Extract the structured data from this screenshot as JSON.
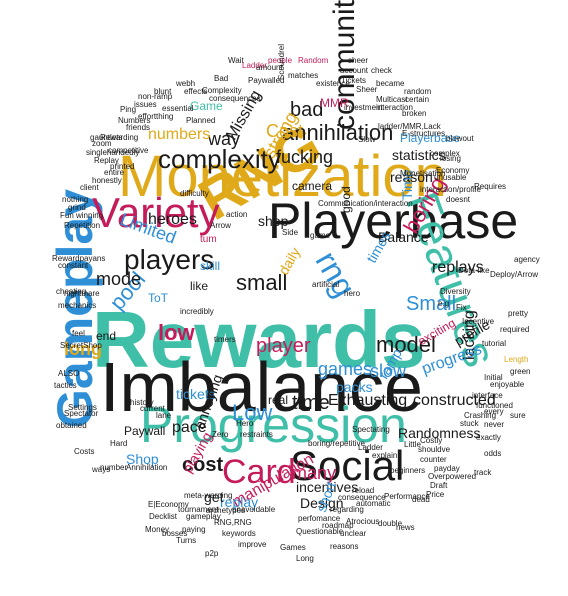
{
  "palette": {
    "teal": "#3fbfa8",
    "gold": "#e0a91a",
    "black": "#1a1a1a",
    "crimson": "#c41c5a",
    "blue": "#2e8fd6",
    "grey": "#777777"
  },
  "words": [
    {
      "text": "Rewards",
      "c": "teal"
    },
    {
      "text": "Imbalance",
      "c": "black"
    },
    {
      "text": "Monetization",
      "c": "gold"
    },
    {
      "text": "Playerbase",
      "c": "black"
    },
    {
      "text": "RNG",
      "c": "gold"
    },
    {
      "text": "Progression",
      "c": "teal"
    },
    {
      "text": "Gameplay",
      "c": "blue"
    },
    {
      "text": "Features",
      "c": "teal"
    },
    {
      "text": "Social",
      "c": "black"
    },
    {
      "text": "Variety",
      "c": "crimson"
    },
    {
      "text": "Card",
      "c": "crimson"
    },
    {
      "text": "players",
      "c": "black"
    },
    {
      "text": "community",
      "c": "black"
    },
    {
      "text": "rng",
      "c": "blue"
    },
    {
      "text": "complexity",
      "c": "black"
    },
    {
      "text": "annihilation",
      "c": "black"
    },
    {
      "text": "Low",
      "c": "blue"
    },
    {
      "text": "low",
      "c": "crimson"
    },
    {
      "text": "Limited",
      "c": "blue"
    },
    {
      "text": "Small",
      "c": "blue"
    },
    {
      "text": "model",
      "c": "black"
    },
    {
      "text": "time",
      "c": "black"
    },
    {
      "text": "bad",
      "c": "black"
    },
    {
      "text": "fucking",
      "c": "black"
    },
    {
      "text": "small",
      "c": "black"
    },
    {
      "text": "way",
      "c": "black"
    },
    {
      "text": "Cost",
      "c": "gold"
    },
    {
      "text": "strong",
      "c": "gold"
    },
    {
      "text": "Missing",
      "c": "black"
    },
    {
      "text": "numbers",
      "c": "gold"
    },
    {
      "text": "heroes",
      "c": "black"
    },
    {
      "text": "pool",
      "c": "blue"
    },
    {
      "text": "mode",
      "c": "black"
    },
    {
      "text": "boring",
      "c": "crimson"
    },
    {
      "text": "replays",
      "c": "black"
    },
    {
      "text": "statistics",
      "c": "black"
    },
    {
      "text": "reason",
      "c": "black"
    },
    {
      "text": "Playerbase",
      "c": "blue"
    },
    {
      "text": "Balance",
      "c": "black"
    },
    {
      "text": "player",
      "c": "crimson"
    },
    {
      "text": "games",
      "c": "blue"
    },
    {
      "text": "slow",
      "c": "blue"
    },
    {
      "text": "many",
      "c": "crimson"
    },
    {
      "text": "cost",
      "c": "black"
    },
    {
      "text": "Exhausting",
      "c": "black"
    },
    {
      "text": "constructed",
      "c": "black"
    },
    {
      "text": "tickets",
      "c": "blue"
    },
    {
      "text": "pace",
      "c": "black"
    },
    {
      "text": "Shop",
      "c": "blue"
    },
    {
      "text": "playing",
      "c": "crimson"
    },
    {
      "text": "manipulation",
      "c": "crimson"
    },
    {
      "text": "incentives",
      "c": "black"
    },
    {
      "text": "Design",
      "c": "black"
    },
    {
      "text": "Randomness",
      "c": "black"
    },
    {
      "text": "replay",
      "c": "blue"
    },
    {
      "text": "lacking",
      "c": "black"
    },
    {
      "text": "progress",
      "c": "blue"
    },
    {
      "text": "profile",
      "c": "black"
    },
    {
      "text": "long",
      "c": "gold"
    },
    {
      "text": "end",
      "c": "black"
    },
    {
      "text": "Game",
      "c": "teal"
    },
    {
      "text": "MMR",
      "c": "crimson"
    },
    {
      "text": "camera",
      "c": "black"
    },
    {
      "text": "shop",
      "c": "black"
    },
    {
      "text": "tum",
      "c": "crimson"
    },
    {
      "text": "skill",
      "c": "blue"
    },
    {
      "text": "like",
      "c": "black"
    },
    {
      "text": "ToT",
      "c": "blue"
    },
    {
      "text": "real",
      "c": "black"
    },
    {
      "text": "get",
      "c": "black"
    },
    {
      "text": "annoying",
      "c": "black"
    },
    {
      "text": "Paywall",
      "c": "black"
    },
    {
      "text": "ramp",
      "c": "blue"
    },
    {
      "text": "packs",
      "c": "blue"
    },
    {
      "text": "exciting",
      "c": "crimson"
    },
    {
      "text": "daily",
      "c": "gold"
    },
    {
      "text": "good",
      "c": "black"
    },
    {
      "text": "times",
      "c": "blue"
    },
    {
      "text": "short",
      "c": "blue"
    },
    {
      "text": "Time",
      "c": "blue"
    },
    {
      "text": "Ladder",
      "c": "crimson"
    },
    {
      "text": "people",
      "c": "crimson"
    },
    {
      "text": "Random",
      "c": "crimson"
    },
    {
      "text": "matches",
      "c": "black"
    },
    {
      "text": "account",
      "c": "black"
    },
    {
      "text": "check",
      "c": "black"
    },
    {
      "text": "became",
      "c": "black"
    },
    {
      "text": "Tickets",
      "c": "black"
    },
    {
      "text": "certain",
      "c": "black"
    },
    {
      "text": "random",
      "c": "black"
    },
    {
      "text": "broken",
      "c": "black"
    },
    {
      "text": "losing",
      "c": "black"
    },
    {
      "text": "Economy",
      "c": "black"
    },
    {
      "text": "Complexity",
      "c": "black"
    },
    {
      "text": "Paywalled",
      "c": "black"
    },
    {
      "text": "Numbers",
      "c": "black"
    },
    {
      "text": "Annihilation",
      "c": "black"
    },
    {
      "text": "Costs",
      "c": "black"
    },
    {
      "text": "nightmare",
      "c": "black"
    },
    {
      "text": "Rewardpayans",
      "c": "black"
    },
    {
      "text": "Settings",
      "c": "black"
    },
    {
      "text": "Spectator",
      "c": "black"
    },
    {
      "text": "reasons",
      "c": "black"
    },
    {
      "text": "beginners",
      "c": "black"
    },
    {
      "text": "payday",
      "c": "black"
    },
    {
      "text": "counter",
      "c": "black"
    },
    {
      "text": "Diversity",
      "c": "black"
    },
    {
      "text": "Costly",
      "c": "black"
    },
    {
      "text": "dead",
      "c": "black"
    },
    {
      "text": "double",
      "c": "black"
    },
    {
      "text": "unclear",
      "c": "black"
    },
    {
      "text": "Questionable",
      "c": "black"
    },
    {
      "text": "boring/repetitive",
      "c": "black"
    },
    {
      "text": "Monetisation",
      "c": "black"
    },
    {
      "text": "interaction/profile",
      "c": "black"
    },
    {
      "text": "Communication/interaction",
      "c": "black"
    },
    {
      "text": "ladder/MMR,Lack",
      "c": "black"
    },
    {
      "text": "stuck",
      "c": "black"
    },
    {
      "text": "interface",
      "c": "black"
    },
    {
      "text": "Crashing",
      "c": "black"
    },
    {
      "text": "sure",
      "c": "black"
    },
    {
      "text": "exactly",
      "c": "black"
    },
    {
      "text": "odds",
      "c": "black"
    },
    {
      "text": "functioned",
      "c": "black"
    },
    {
      "text": "Initial",
      "c": "black"
    },
    {
      "text": "enjoyable",
      "c": "black"
    },
    {
      "text": "Length",
      "c": "gold"
    },
    {
      "text": "green",
      "c": "black"
    },
    {
      "text": "required",
      "c": "black"
    },
    {
      "text": "Incentive",
      "c": "black"
    },
    {
      "text": "agency",
      "c": "black"
    },
    {
      "text": "Dota-like",
      "c": "black"
    },
    {
      "text": "Deploy/Arrow",
      "c": "black"
    },
    {
      "text": "Requires",
      "c": "black"
    },
    {
      "text": "unusable",
      "c": "black"
    },
    {
      "text": "blowout",
      "c": "black"
    },
    {
      "text": "consequences",
      "c": "black"
    },
    {
      "text": "essential",
      "c": "black"
    },
    {
      "text": "friends",
      "c": "black"
    },
    {
      "text": "competitive",
      "c": "black"
    },
    {
      "text": "Replay",
      "c": "black"
    },
    {
      "text": "printed",
      "c": "black"
    },
    {
      "text": "entire",
      "c": "black"
    },
    {
      "text": "winning",
      "c": "black"
    },
    {
      "text": "Repetition",
      "c": "black"
    },
    {
      "text": "Fun",
      "c": "black"
    },
    {
      "text": "Hard",
      "c": "black"
    },
    {
      "text": "Decklist",
      "c": "black"
    },
    {
      "text": "Money",
      "c": "black"
    },
    {
      "text": "paying",
      "c": "black"
    },
    {
      "text": "Turns",
      "c": "black"
    },
    {
      "text": "RNG,RNG",
      "c": "black"
    },
    {
      "text": "p2p",
      "c": "black"
    },
    {
      "text": "Games",
      "c": "black"
    },
    {
      "text": "Long",
      "c": "black"
    },
    {
      "text": "news",
      "c": "black"
    },
    {
      "text": "Atrocious",
      "c": "black"
    },
    {
      "text": "roadmap",
      "c": "black"
    },
    {
      "text": "keywords",
      "c": "black"
    },
    {
      "text": "gameplay",
      "c": "black"
    },
    {
      "text": "improve",
      "c": "black"
    },
    {
      "text": "meta-warping",
      "c": "black"
    },
    {
      "text": "E|Economy",
      "c": "black"
    },
    {
      "text": "bosses",
      "c": "black"
    },
    {
      "text": "archetypes",
      "c": "black"
    },
    {
      "text": "tournament",
      "c": "black"
    },
    {
      "text": "unavoidable",
      "c": "black"
    },
    {
      "text": "perfomance",
      "c": "black"
    },
    {
      "text": "regarding",
      "c": "black"
    },
    {
      "text": "consequence",
      "c": "black"
    },
    {
      "text": "automatic",
      "c": "black"
    },
    {
      "text": "Performance",
      "c": "black"
    },
    {
      "text": "reload",
      "c": "black"
    },
    {
      "text": "Price",
      "c": "black"
    },
    {
      "text": "Spectating",
      "c": "black"
    },
    {
      "text": "Overpowered",
      "c": "black"
    },
    {
      "text": "Draft",
      "c": "black"
    },
    {
      "text": "Hero",
      "c": "black"
    },
    {
      "text": "Zero",
      "c": "black"
    },
    {
      "text": "restraints",
      "c": "black"
    },
    {
      "text": "lane",
      "c": "black"
    },
    {
      "text": "action",
      "c": "black"
    },
    {
      "text": "artificial",
      "c": "black"
    },
    {
      "text": "hero",
      "c": "black"
    },
    {
      "text": "Side",
      "c": "black"
    },
    {
      "text": "incredibly",
      "c": "black"
    },
    {
      "text": "timers",
      "c": "black"
    },
    {
      "text": "Arrow",
      "c": "black"
    },
    {
      "text": "e.g",
      "c": "black"
    },
    {
      "text": "feel",
      "c": "black"
    },
    {
      "text": "ways",
      "c": "black"
    },
    {
      "text": "number",
      "c": "black"
    },
    {
      "text": "SecretShop",
      "c": "black"
    },
    {
      "text": "mechanics",
      "c": "black"
    },
    {
      "text": "cheating",
      "c": "black"
    },
    {
      "text": "constant",
      "c": "black"
    },
    {
      "text": "client",
      "c": "black"
    },
    {
      "text": "history",
      "c": "black"
    },
    {
      "text": "current",
      "c": "black"
    },
    {
      "text": "obtained",
      "c": "black"
    },
    {
      "text": "tactics",
      "c": "black"
    },
    {
      "text": "ALSO",
      "c": "black"
    },
    {
      "text": "investment",
      "c": "black"
    },
    {
      "text": "interaction",
      "c": "black"
    },
    {
      "text": "Multicast",
      "c": "black"
    },
    {
      "text": "existence",
      "c": "black"
    },
    {
      "text": "Bad",
      "c": "black"
    },
    {
      "text": "Wait",
      "c": "black"
    },
    {
      "text": "amount",
      "c": "black"
    },
    {
      "text": "sheer",
      "c": "black"
    },
    {
      "text": "pretty",
      "c": "black"
    },
    {
      "text": "Ping",
      "c": "black"
    },
    {
      "text": "effort",
      "c": "black"
    },
    {
      "text": "thing",
      "c": "black"
    },
    {
      "text": "issues",
      "c": "black"
    },
    {
      "text": "non-ramp",
      "c": "black"
    },
    {
      "text": "blunt",
      "c": "black"
    },
    {
      "text": "webh",
      "c": "black"
    },
    {
      "text": "effects",
      "c": "black"
    },
    {
      "text": "Rewarding",
      "c": "black"
    },
    {
      "text": "Scoundrel",
      "c": "black"
    },
    {
      "text": "Sheer",
      "c": "black"
    },
    {
      "text": "gauntlets",
      "c": "black"
    },
    {
      "text": "singlehandedly",
      "c": "black"
    },
    {
      "text": "zoom",
      "c": "black"
    },
    {
      "text": "honestly",
      "c": "black"
    },
    {
      "text": "grind",
      "c": "black"
    },
    {
      "text": "tutorial",
      "c": "black"
    },
    {
      "text": "explain",
      "c": "black"
    },
    {
      "text": "shouldve",
      "c": "black"
    },
    {
      "text": "Little",
      "c": "black"
    },
    {
      "text": "Ladder",
      "c": "black"
    },
    {
      "text": "Fix",
      "c": "black"
    },
    {
      "text": "never",
      "c": "black"
    },
    {
      "text": "every",
      "c": "black"
    },
    {
      "text": "track",
      "c": "black"
    },
    {
      "text": "Slow",
      "c": "black"
    },
    {
      "text": "nothing",
      "c": "black"
    },
    {
      "text": "Planned",
      "c": "black"
    },
    {
      "text": "difficulty",
      "c": "black"
    },
    {
      "text": "complex",
      "c": "black"
    },
    {
      "text": "doesnt",
      "c": "black"
    },
    {
      "text": "game",
      "c": "black"
    },
    {
      "text": "E-structures",
      "c": "black"
    }
  ]
}
